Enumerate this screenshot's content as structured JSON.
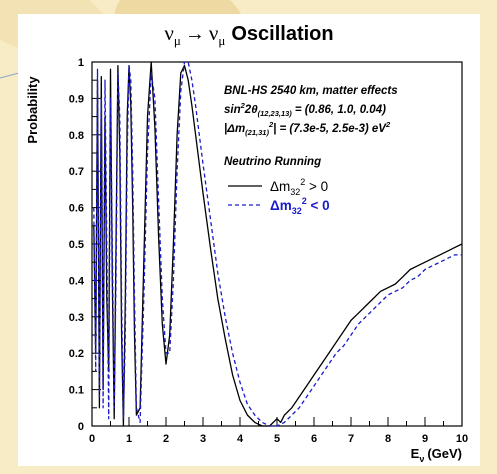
{
  "background": {
    "page_color": "#f7ecc6",
    "panel_color": "#ffffff",
    "decor_color": "#eed9a2",
    "decor_line_color": "#8aa6c8"
  },
  "chart_data": {
    "type": "line",
    "title_symbols": {
      "nu": "ν",
      "mu": "μ",
      "arrow": "→"
    },
    "title_text": "Oscillation",
    "ylabel": "Probability",
    "xlabel_main": "E",
    "xlabel_sub": "ν",
    "xlabel_units": "(GeV)",
    "xlim": [
      0,
      10
    ],
    "ylim": [
      0,
      1
    ],
    "x_ticks": [
      "0",
      "1",
      "2",
      "3",
      "4",
      "5",
      "6",
      "7",
      "8",
      "9",
      "10"
    ],
    "y_ticks": [
      "0",
      "0.1",
      "0.2",
      "0.3",
      "0.4",
      "0.5",
      "0.6",
      "0.7",
      "0.8",
      "0.9",
      "1"
    ],
    "grid": false,
    "legend_position": "top-right",
    "annotations": {
      "experiment": "BNL-HS 2540 km, matter effects",
      "sin_prefix": "sin",
      "sin_exp": "2",
      "sin_theta": "2θ",
      "sin_sub": "(12,23,13)",
      "sin_value": "= (0.86, 1.0, 0.04)",
      "dm_prefix": "|Δm",
      "dm_sub": "(21,31)",
      "dm_exp": "2",
      "dm_value": "| = (7.3e-5, 2.5e-3) eV",
      "dm_unit_exp": "2",
      "legend_title": "Neutrino Running"
    },
    "series": [
      {
        "legend_main": "Δm",
        "legend_sub": "32",
        "legend_exp": "2",
        "legend_rel": " > 0",
        "color": "#000000",
        "dash": "none",
        "x": [
          0.05,
          0.1,
          0.15,
          0.2,
          0.25,
          0.3,
          0.35,
          0.4,
          0.45,
          0.5,
          0.55,
          0.6,
          0.65,
          0.7,
          0.75,
          0.8,
          0.85,
          0.9,
          0.95,
          1.0,
          1.05,
          1.1,
          1.15,
          1.2,
          1.3,
          1.4,
          1.5,
          1.6,
          1.7,
          1.8,
          1.9,
          2.0,
          2.1,
          2.2,
          2.3,
          2.4,
          2.5,
          2.6,
          2.7,
          2.8,
          2.9,
          3.0,
          3.2,
          3.4,
          3.6,
          3.8,
          4.0,
          4.2,
          4.4,
          4.6,
          4.8,
          5.0,
          5.1,
          5.2,
          5.4,
          5.6,
          5.8,
          6.0,
          6.2,
          6.4,
          6.6,
          6.8,
          7.0,
          7.2,
          7.4,
          7.6,
          7.8,
          8.0,
          8.2,
          8.4,
          8.6,
          8.8,
          9.0,
          9.2,
          9.4,
          9.6,
          9.8,
          10.0
        ],
        "y": [
          0.55,
          0.2,
          0.95,
          0.05,
          0.96,
          0.1,
          0.85,
          0.35,
          0.15,
          0.98,
          0.4,
          0.02,
          0.5,
          0.99,
          0.75,
          0.25,
          0.0,
          0.35,
          0.85,
          0.99,
          0.88,
          0.6,
          0.25,
          0.03,
          0.05,
          0.45,
          0.85,
          1.0,
          0.82,
          0.52,
          0.28,
          0.17,
          0.25,
          0.5,
          0.8,
          0.97,
          0.99,
          0.95,
          0.88,
          0.8,
          0.72,
          0.64,
          0.49,
          0.35,
          0.24,
          0.14,
          0.07,
          0.03,
          0.01,
          0.0,
          0.0,
          0.02,
          0.01,
          0.03,
          0.05,
          0.08,
          0.11,
          0.14,
          0.17,
          0.2,
          0.23,
          0.26,
          0.29,
          0.31,
          0.33,
          0.35,
          0.37,
          0.38,
          0.39,
          0.41,
          0.43,
          0.44,
          0.45,
          0.46,
          0.47,
          0.48,
          0.49,
          0.5
        ]
      },
      {
        "legend_main": "Δm",
        "legend_sub": "32",
        "legend_exp": "2",
        "legend_rel": " < 0",
        "color": "#1a1acc",
        "dash": "4,3",
        "x": [
          0.05,
          0.1,
          0.15,
          0.2,
          0.25,
          0.3,
          0.35,
          0.4,
          0.45,
          0.5,
          0.55,
          0.6,
          0.65,
          0.7,
          0.75,
          0.8,
          0.85,
          0.9,
          0.95,
          1.0,
          1.05,
          1.1,
          1.15,
          1.2,
          1.3,
          1.4,
          1.5,
          1.6,
          1.7,
          1.8,
          1.9,
          2.0,
          2.1,
          2.2,
          2.3,
          2.4,
          2.5,
          2.6,
          2.7,
          2.8,
          2.9,
          3.0,
          3.2,
          3.4,
          3.6,
          3.8,
          4.0,
          4.2,
          4.4,
          4.6,
          4.8,
          5.0,
          5.2,
          5.4,
          5.6,
          5.8,
          6.0,
          6.2,
          6.4,
          6.6,
          6.8,
          7.0,
          7.2,
          7.4,
          7.6,
          7.8,
          8.0,
          8.2,
          8.4,
          8.6,
          8.8,
          9.0,
          9.2,
          9.4,
          9.6,
          9.8,
          10.0
        ],
        "y": [
          0.6,
          0.15,
          0.98,
          0.08,
          0.9,
          0.05,
          0.95,
          0.5,
          0.02,
          0.9,
          0.5,
          0.05,
          0.4,
          0.97,
          0.85,
          0.35,
          0.02,
          0.25,
          0.75,
          0.99,
          0.95,
          0.7,
          0.35,
          0.05,
          0.01,
          0.35,
          0.75,
          0.97,
          0.9,
          0.62,
          0.35,
          0.2,
          0.2,
          0.4,
          0.7,
          0.92,
          1.0,
          1.0,
          0.95,
          0.88,
          0.8,
          0.72,
          0.57,
          0.42,
          0.3,
          0.2,
          0.12,
          0.06,
          0.03,
          0.01,
          0.0,
          0.0,
          0.01,
          0.03,
          0.05,
          0.08,
          0.11,
          0.14,
          0.17,
          0.2,
          0.22,
          0.25,
          0.28,
          0.3,
          0.32,
          0.34,
          0.36,
          0.37,
          0.38,
          0.4,
          0.41,
          0.43,
          0.44,
          0.45,
          0.46,
          0.47,
          0.47
        ]
      }
    ]
  }
}
